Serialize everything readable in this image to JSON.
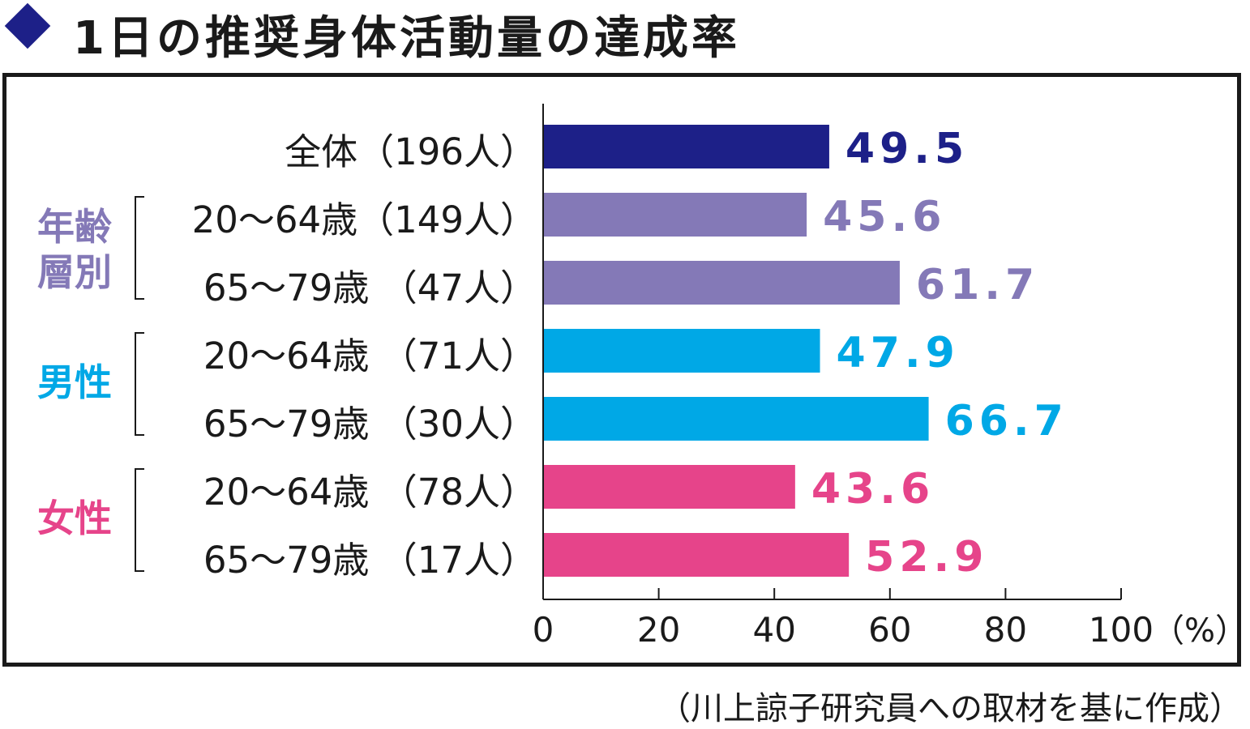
{
  "title": "1日の推奨身体活動量の達成率",
  "source_note": "（川上諒子研究員への取材を基に作成）",
  "groups": [
    {
      "label_line1": "年齢",
      "label_line2": "層別",
      "color": "#8479b7"
    },
    {
      "label_line1": "男性",
      "label_line2": "",
      "color": "#00a8e6"
    },
    {
      "label_line1": "女性",
      "label_line2": "",
      "color": "#e6448a"
    }
  ],
  "chart_data": {
    "type": "bar",
    "orientation": "horizontal",
    "title": "1日の推奨身体活動量の達成率",
    "categories": [
      "全体（196人）",
      "20～64歳（149人）",
      "65～79歳 （47人）",
      "20～64歳 （71人）",
      "65～79歳 （30人）",
      "20～64歳 （78人）",
      "65～79歳 （17人）"
    ],
    "values": [
      49.5,
      45.6,
      61.7,
      47.9,
      66.7,
      43.6,
      52.9
    ],
    "value_labels": [
      "49.5",
      "45.6",
      "61.7",
      "47.9",
      "66.7",
      "43.6",
      "52.9"
    ],
    "colors": [
      "#1d2088",
      "#8479b7",
      "#8479b7",
      "#00a8e6",
      "#00a8e6",
      "#e6448a",
      "#e6448a"
    ],
    "xlim": [
      0,
      100
    ],
    "xticks": [
      0,
      20,
      40,
      60,
      80,
      100
    ],
    "xtick_labels": [
      "0",
      "20",
      "40",
      "60",
      "80",
      "100"
    ],
    "xunit": "（%）",
    "xlabel": "",
    "ylabel": ""
  }
}
